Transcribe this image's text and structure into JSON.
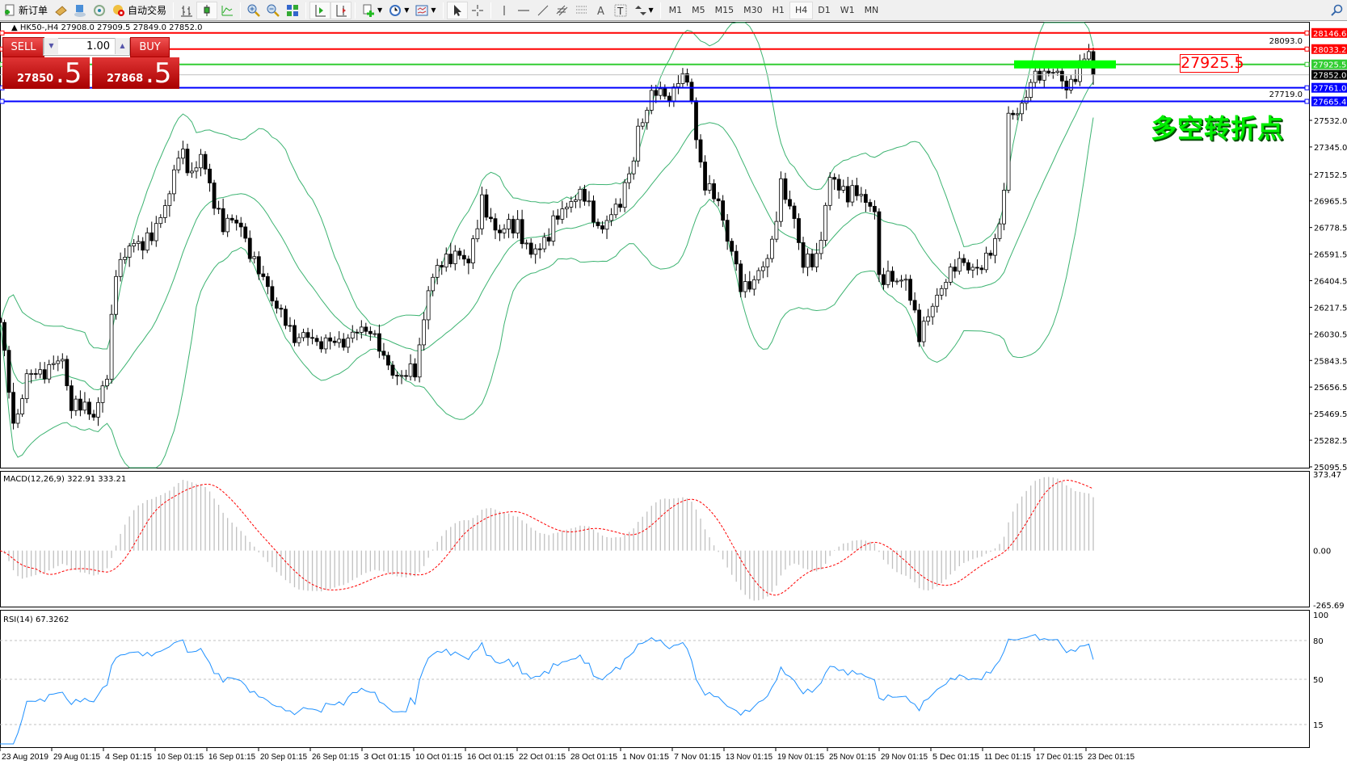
{
  "toolbar": {
    "new_order": "新订单",
    "auto_trading": "自动交易",
    "timeframes": [
      "M1",
      "M5",
      "M15",
      "M30",
      "H1",
      "H4",
      "D1",
      "W1",
      "MN"
    ],
    "active_timeframe": "H4"
  },
  "chart_info": {
    "text": "HK50-,H4  27908.0 27909.5 27849.0 27852.0"
  },
  "trade_panel": {
    "sell_label": "SELL",
    "buy_label": "BUY",
    "lot": "1.00",
    "sell_price_main": "27850",
    "sell_price_frac": ".5",
    "buy_price_main": "27868",
    "buy_price_frac": ".5"
  },
  "annotation": {
    "price_label": "27925.5",
    "text": "多空转折点",
    "text_color": "#00ee00"
  },
  "chart_data": {
    "type": "candlestick",
    "symbol": "HK50-",
    "timeframe": "H4",
    "last_ohlc": {
      "open": 27908.0,
      "high": 27909.5,
      "low": 27849.0,
      "close": 27852.0
    },
    "price_axis_ticks": [
      "27532.0",
      "27345.0",
      "27152.5",
      "26965.5",
      "26778.5",
      "26591.5",
      "26404.5",
      "26217.5",
      "26030.5",
      "25843.5",
      "25656.5",
      "25469.5",
      "25282.5",
      "25095.5"
    ],
    "price_axis_extra": [
      "28093.0",
      "27719.0"
    ],
    "ylim": [
      25095.5,
      28146.6
    ],
    "date_labels": [
      "23 Aug 2019",
      "29 Aug 01:15",
      "4 Sep 01:15",
      "10 Sep 01:15",
      "16 Sep 01:15",
      "20 Sep 01:15",
      "26 Sep 01:15",
      "3 Oct 01:15",
      "10 Oct 01:15",
      "16 Oct 01:15",
      "22 Oct 01:15",
      "28 Oct 01:15",
      "1 Nov 01:15",
      "7 Nov 01:15",
      "13 Nov 01:15",
      "19 Nov 01:15",
      "25 Nov 01:15",
      "29 Nov 01:15",
      "5 Dec 01:15",
      "11 Dec 01:15",
      "17 Dec 01:15",
      "23 Dec 01:15"
    ],
    "horizontal_lines": [
      {
        "price": 28146.6,
        "label": "28146.6",
        "color": "#ff0000"
      },
      {
        "price": 28033.2,
        "label": "28033.2",
        "color": "#ff0000"
      },
      {
        "price": 27925.5,
        "label": "27925.5",
        "color": "#32cd32"
      },
      {
        "price": 27852.0,
        "label": "27852.0",
        "color": "#c0c0c0",
        "label_bg": "#000000"
      },
      {
        "price": 27761.0,
        "label": "27761.0",
        "color": "#0000ff"
      },
      {
        "price": 27665.4,
        "label": "27665.4",
        "color": "#0000ff"
      }
    ],
    "close_path": [
      [
        0,
        26111
      ],
      [
        3,
        25386
      ],
      [
        6,
        25718
      ],
      [
        14,
        25839
      ],
      [
        16,
        25537
      ],
      [
        21,
        25476
      ],
      [
        24,
        25718
      ],
      [
        26,
        26504
      ],
      [
        29,
        26625
      ],
      [
        32,
        26686
      ],
      [
        35,
        26746
      ],
      [
        38,
        27048
      ],
      [
        40,
        27290
      ],
      [
        43,
        27169
      ],
      [
        45,
        27290
      ],
      [
        47,
        27048
      ],
      [
        50,
        26806
      ],
      [
        54,
        26806
      ],
      [
        57,
        26504
      ],
      [
        60,
        26383
      ],
      [
        62,
        26202
      ],
      [
        66,
        26020
      ],
      [
        70,
        25990
      ],
      [
        75,
        25960
      ],
      [
        79,
        26020
      ],
      [
        83,
        26081
      ],
      [
        86,
        25839
      ],
      [
        90,
        25718
      ],
      [
        93,
        25779
      ],
      [
        96,
        26323
      ],
      [
        99,
        26565
      ],
      [
        105,
        26565
      ],
      [
        108,
        26927
      ],
      [
        112,
        26746
      ],
      [
        116,
        26806
      ],
      [
        119,
        26565
      ],
      [
        123,
        26746
      ],
      [
        128,
        26988
      ],
      [
        131,
        26988
      ],
      [
        135,
        26746
      ],
      [
        139,
        26988
      ],
      [
        142,
        27229
      ],
      [
        143,
        27471
      ],
      [
        146,
        27713
      ],
      [
        150,
        27713
      ],
      [
        153,
        27834
      ],
      [
        155,
        27713
      ],
      [
        156,
        27411
      ],
      [
        158,
        27048
      ],
      [
        161,
        26988
      ],
      [
        163,
        26686
      ],
      [
        166,
        26383
      ],
      [
        169,
        26383
      ],
      [
        171,
        26504
      ],
      [
        173,
        26686
      ],
      [
        175,
        27048
      ],
      [
        178,
        26867
      ],
      [
        180,
        26504
      ],
      [
        183,
        26565
      ],
      [
        186,
        27108
      ],
      [
        189,
        27048
      ],
      [
        193,
        26988
      ],
      [
        196,
        26927
      ],
      [
        197,
        26383
      ],
      [
        200,
        26444
      ],
      [
        203,
        26383
      ],
      [
        206,
        26050
      ],
      [
        209,
        26202
      ],
      [
        212,
        26444
      ],
      [
        216,
        26534
      ],
      [
        220,
        26474
      ],
      [
        222,
        26625
      ],
      [
        224,
        26806
      ],
      [
        225,
        27048
      ],
      [
        226,
        27532
      ],
      [
        229,
        27653
      ],
      [
        232,
        27834
      ],
      [
        235,
        27895
      ],
      [
        239,
        27774
      ],
      [
        242,
        27895
      ],
      [
        244,
        28016
      ],
      [
        245,
        27852
      ]
    ],
    "indicators": {
      "bollinger": {
        "color": "#3cb371"
      },
      "macd": {
        "label": "MACD(12,26,9) 322.91 333.21",
        "main": 322.91,
        "signal": 333.21,
        "ylim": [
          -265.69,
          373.47
        ],
        "ticks": [
          "373.47",
          "0.00",
          "-265.69"
        ],
        "hist_color": "#c0c0c0",
        "signal_color": "#ff0000"
      },
      "rsi": {
        "label": "RSI(14) 67.3262",
        "value": 67.3262,
        "ylim": [
          0,
          100
        ],
        "ticks": [
          "100",
          "80",
          "50",
          "15"
        ],
        "color": "#1e90ff"
      }
    }
  }
}
